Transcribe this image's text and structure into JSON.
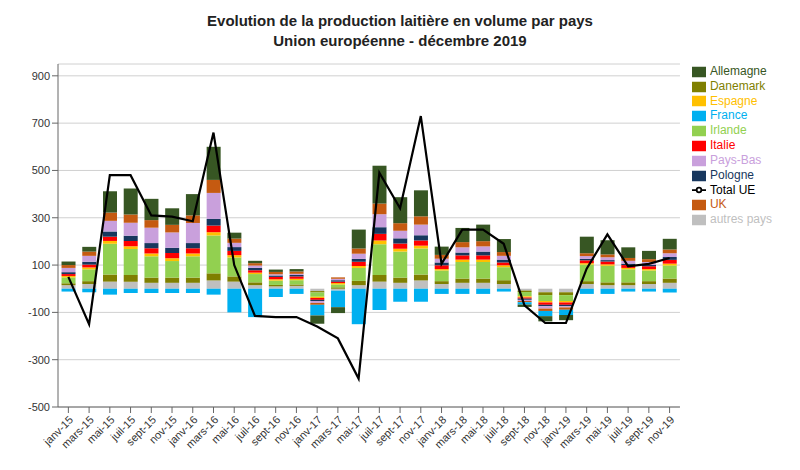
{
  "chart_data": {
    "type": "bar",
    "title": "Evolution de la production laitière en volume par pays",
    "subtitle": "Union européenne - décembre 2019",
    "stacked": true,
    "grid": true,
    "legend": "right",
    "categories": [
      "janv-15",
      "mars-15",
      "mai-15",
      "juil-15",
      "sept-15",
      "nov-15",
      "janv-16",
      "mars-16",
      "mai-16",
      "juil-16",
      "sept-16",
      "nov-16",
      "janv-17",
      "mars-17",
      "mai-17",
      "juil-17",
      "sept-17",
      "nov-17",
      "janv-18",
      "mars-18",
      "mai-18",
      "juil-18",
      "sept-18",
      "nov-18",
      "janv-19",
      "mars-19",
      "mai-19",
      "juil-19",
      "sept-19",
      "nov-19"
    ],
    "series": [
      {
        "name": "autres pays",
        "color": "#bfbfbf",
        "values": [
          15,
          20,
          30,
          30,
          25,
          25,
          25,
          35,
          30,
          15,
          10,
          12,
          -10,
          -8,
          15,
          30,
          25,
          35,
          20,
          25,
          25,
          20,
          -8,
          -15,
          -15,
          20,
          15,
          15,
          20,
          25
        ]
      },
      {
        "name": "Danemark",
        "color": "#7f7f00",
        "values": [
          8,
          12,
          30,
          28,
          22,
          22,
          22,
          30,
          22,
          12,
          6,
          6,
          -6,
          6,
          18,
          28,
          22,
          25,
          12,
          18,
          18,
          16,
          -6,
          -12,
          -12,
          12,
          12,
          12,
          12,
          18
        ]
      },
      {
        "name": "Irlande",
        "color": "#92d050",
        "values": [
          25,
          50,
          130,
          110,
          90,
          70,
          90,
          160,
          80,
          35,
          18,
          18,
          -18,
          12,
          55,
          130,
          110,
          110,
          45,
          70,
          70,
          55,
          -18,
          -25,
          -25,
          70,
          70,
          55,
          45,
          55
        ]
      },
      {
        "name": "Espagne",
        "color": "#ffc000",
        "values": [
          6,
          8,
          12,
          12,
          12,
          12,
          12,
          14,
          10,
          6,
          6,
          6,
          -5,
          6,
          8,
          16,
          12,
          12,
          6,
          10,
          10,
          8,
          -5,
          -6,
          -6,
          6,
          6,
          6,
          6,
          8
        ]
      },
      {
        "name": "Italie",
        "color": "#ff0000",
        "values": [
          8,
          12,
          18,
          22,
          22,
          22,
          22,
          28,
          18,
          10,
          10,
          10,
          -8,
          6,
          18,
          28,
          22,
          22,
          16,
          18,
          18,
          12,
          -5,
          -10,
          -10,
          12,
          12,
          12,
          12,
          16
        ]
      },
      {
        "name": "Pologne",
        "color": "#17375e",
        "values": [
          8,
          12,
          22,
          22,
          22,
          22,
          22,
          28,
          16,
          10,
          6,
          6,
          -5,
          6,
          12,
          28,
          22,
          22,
          12,
          12,
          16,
          12,
          -5,
          -6,
          -6,
          6,
          6,
          6,
          6,
          12
        ]
      },
      {
        "name": "Pays-Bas",
        "color": "#c9a0dc",
        "values": [
          18,
          25,
          45,
          55,
          65,
          65,
          85,
          110,
          18,
          10,
          5,
          5,
          -8,
          6,
          22,
          55,
          32,
          45,
          16,
          22,
          22,
          16,
          -5,
          -10,
          -5,
          12,
          12,
          12,
          12,
          16
        ]
      },
      {
        "name": "UK",
        "color": "#c55a11",
        "values": [
          12,
          18,
          35,
          35,
          32,
          32,
          32,
          55,
          18,
          10,
          10,
          10,
          -8,
          6,
          22,
          45,
          32,
          35,
          16,
          22,
          22,
          16,
          -5,
          -10,
          -10,
          12,
          12,
          12,
          12,
          16
        ]
      },
      {
        "name": "France",
        "color": "#00b0f0",
        "values": [
          -12,
          -15,
          -25,
          -18,
          -18,
          -18,
          -18,
          -25,
          -100,
          -120,
          -35,
          -22,
          -45,
          -70,
          -150,
          -90,
          -55,
          -55,
          -22,
          -22,
          -22,
          -12,
          -10,
          -22,
          -22,
          -22,
          -22,
          -12,
          -12,
          -16
        ]
      },
      {
        "name": "Allemagne",
        "color": "#375623",
        "values": [
          15,
          20,
          90,
          110,
          90,
          70,
          90,
          140,
          25,
          10,
          10,
          10,
          -35,
          -25,
          80,
          160,
          110,
          110,
          35,
          60,
          70,
          55,
          -10,
          -22,
          -22,
          70,
          60,
          45,
          35,
          45
        ]
      },
      {
        "name": "Total UE",
        "type": "line",
        "color": "#000000",
        "values": [
          50,
          -150,
          480,
          480,
          310,
          305,
          285,
          660,
          100,
          -115,
          -120,
          -120,
          -160,
          -210,
          -380,
          490,
          340,
          730,
          105,
          250,
          250,
          190,
          -70,
          -145,
          -145,
          85,
          230,
          95,
          105,
          130
        ]
      }
    ],
    "ylim": [
      -500,
      950
    ],
    "yticks": [
      -500,
      -300,
      -100,
      100,
      300,
      500,
      700,
      900
    ]
  }
}
